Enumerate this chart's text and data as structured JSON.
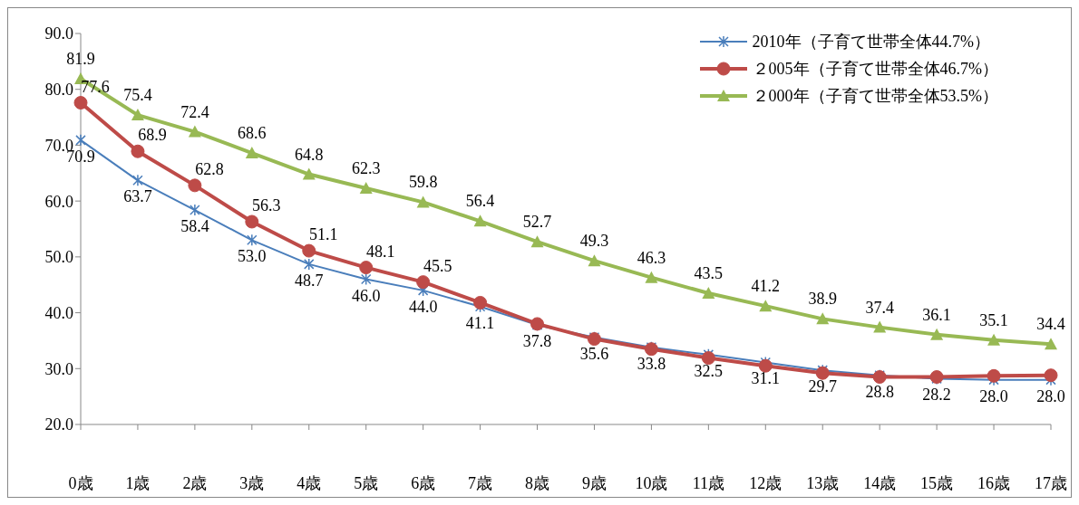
{
  "chart_data": {
    "type": "line",
    "categories": [
      "0歳",
      "1歳",
      "2歳",
      "3歳",
      "4歳",
      "5歳",
      "6歳",
      "7歳",
      "8歳",
      "9歳",
      "10歳",
      "11歳",
      "12歳",
      "13歳",
      "14歳",
      "15歳",
      "16歳",
      "17歳"
    ],
    "ylim": [
      20,
      90
    ],
    "yticks": [
      {
        "value": 20,
        "label": "20.0"
      },
      {
        "value": 30,
        "label": "30.0"
      },
      {
        "value": 40,
        "label": "40.0"
      },
      {
        "value": 50,
        "label": "50.0"
      },
      {
        "value": 60,
        "label": "60.0"
      },
      {
        "value": 70,
        "label": "70.0"
      },
      {
        "value": 80,
        "label": "80.0"
      },
      {
        "value": 90,
        "label": "90.0"
      }
    ],
    "grid": false,
    "legend": "top right",
    "series": [
      {
        "name": "2010年（子育て世帯全体44.7%）",
        "color": "#4a7ebb",
        "marker": "cross",
        "values": [
          70.9,
          63.7,
          58.4,
          53.0,
          48.7,
          46.0,
          44.0,
          41.1,
          37.8,
          35.6,
          33.8,
          32.5,
          31.1,
          29.7,
          28.8,
          28.2,
          28.0,
          28.0
        ],
        "value_labels": [
          "70.9",
          "63.7",
          "58.4",
          "53.0",
          "48.7",
          "46.0",
          "44.0",
          "41.1",
          "37.8",
          "35.6",
          "33.8",
          "32.5",
          "31.1",
          "29.7",
          "28.8",
          "28.2",
          "28.0",
          "28.0"
        ]
      },
      {
        "name": "２005年（子育て世帯全体46.7%）",
        "color": "#be4b48",
        "marker": "circle",
        "values": [
          77.6,
          68.9,
          62.8,
          56.3,
          51.1,
          48.1,
          45.5,
          41.8,
          38.0,
          35.3,
          33.5,
          31.9,
          30.5,
          29.2,
          28.5,
          28.5,
          28.7,
          28.8
        ],
        "value_labels": [
          "77.6",
          "68.9",
          "62.8",
          "56.3",
          "51.1",
          "48.1",
          "45.5",
          null,
          null,
          null,
          null,
          null,
          null,
          null,
          null,
          null,
          null,
          null
        ]
      },
      {
        "name": "２000年（子育て世帯全体53.5%）",
        "color": "#98b954",
        "marker": "triangle",
        "values": [
          81.9,
          75.4,
          72.4,
          68.6,
          64.8,
          62.3,
          59.8,
          56.4,
          52.7,
          49.3,
          46.3,
          43.5,
          41.2,
          38.9,
          37.4,
          36.1,
          35.1,
          34.4
        ],
        "value_labels": [
          "81.9",
          "75.4",
          "72.4",
          "68.6",
          "64.8",
          "62.3",
          "59.8",
          "56.4",
          "52.7",
          "49.3",
          "46.3",
          "43.5",
          "41.2",
          "38.9",
          "37.4",
          "36.1",
          "35.1",
          "34.4"
        ]
      }
    ]
  }
}
